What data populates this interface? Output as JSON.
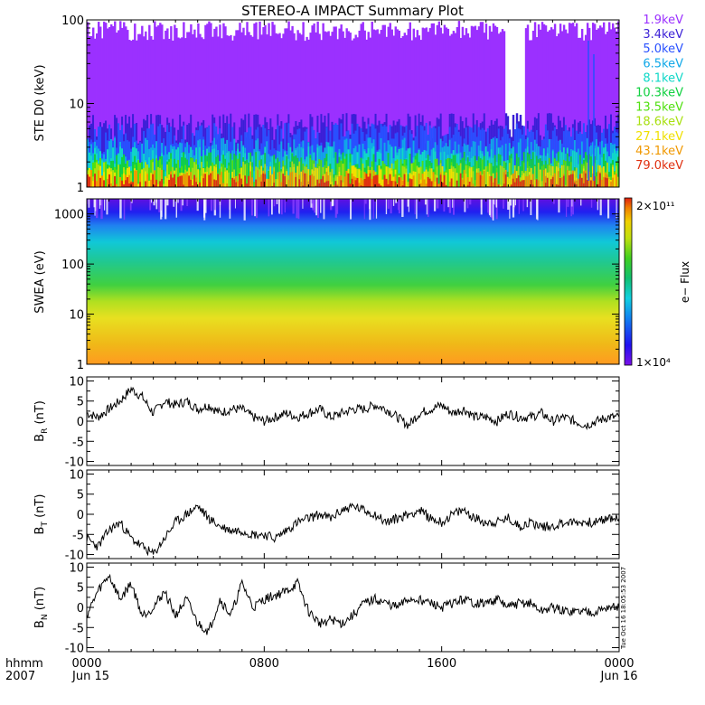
{
  "title": "STEREO-A IMPACT Summary Plot",
  "footer": {
    "time_label": "hhmm",
    "year_label": "2007",
    "x_ticks": [
      "0000",
      "0800",
      "1600",
      "0000"
    ],
    "date_labels": [
      "Jun 15",
      "Jun 16"
    ],
    "timestamp": "Tue Oct 16 18:05:53 2007"
  },
  "ste_channels": [
    {
      "label": "1.9keV",
      "color": "#9b30ff"
    },
    {
      "label": "3.4keV",
      "color": "#3a1fd6"
    },
    {
      "label": "5.0keV",
      "color": "#2850ff"
    },
    {
      "label": "6.5keV",
      "color": "#10a8e8"
    },
    {
      "label": "8.1keV",
      "color": "#10d8c8"
    },
    {
      "label": "10.3keV",
      "color": "#10d040"
    },
    {
      "label": "13.5keV",
      "color": "#50e010"
    },
    {
      "label": "18.6keV",
      "color": "#a8e010"
    },
    {
      "label": "27.1keV",
      "color": "#f0e000"
    },
    {
      "label": "43.1keV",
      "color": "#f09800"
    },
    {
      "label": "79.0keV",
      "color": "#e03010"
    }
  ],
  "colorbar": {
    "top_label": "2×10¹¹",
    "bottom_label": "1×10⁴",
    "title": "e− Flux"
  },
  "chart_data": [
    {
      "id": "ste",
      "type": "area",
      "ylabel": "STE D0 (keV)",
      "yscale": "log",
      "ylim": [
        1,
        100
      ],
      "yticks": [
        "1",
        "10",
        "100"
      ],
      "xlim": [
        0,
        24
      ],
      "x_unit": "hours",
      "note": "stacked energy-channel counts; 1.9keV saturates near top, higher channels form colored base band",
      "series_levels": {
        "1.9keV": 75,
        "3.4keV": 5.5,
        "5.0keV": 4.2,
        "6.5keV": 2.8,
        "8.1keV": 2.2,
        "10.3keV": 1.9,
        "13.5keV": 1.6,
        "18.6keV": 1.45,
        "27.1keV": 1.3,
        "43.1keV": 1.15,
        "79.0keV": 1.05
      }
    },
    {
      "id": "swea",
      "type": "heatmap",
      "ylabel": "SWEA (eV)",
      "yscale": "log",
      "ylim": [
        1,
        2000
      ],
      "yticks": [
        "1",
        "10",
        "100",
        "1000"
      ],
      "xlim": [
        0,
        24
      ],
      "zscale": "log",
      "zlim": [
        10000,
        200000000000
      ]
    },
    {
      "id": "br",
      "type": "line",
      "ylabel_main": "B",
      "ylabel_sub": "R",
      "ylabel_unit": " (nT)",
      "ylim": [
        -11,
        11
      ],
      "yticks": [
        "10",
        "5",
        "0",
        "-5",
        "-10"
      ],
      "xlim": [
        0,
        24
      ],
      "x": [
        0,
        0.5,
        1,
        1.5,
        2,
        2.5,
        3,
        3.5,
        4,
        4.5,
        5,
        5.5,
        6,
        6.5,
        7,
        7.5,
        8,
        8.5,
        9,
        9.5,
        10,
        10.5,
        11,
        11.5,
        12,
        12.5,
        13,
        13.5,
        14,
        14.5,
        15,
        15.5,
        16,
        16.5,
        17,
        17.5,
        18,
        18.5,
        19,
        19.5,
        20,
        20.5,
        21,
        21.5,
        22,
        22.5,
        23,
        23.5,
        24
      ],
      "y": [
        2,
        1,
        3,
        5,
        8,
        6,
        2,
        5,
        4,
        5,
        3,
        4,
        2,
        3,
        3,
        1,
        0,
        1,
        2,
        1,
        2,
        3,
        1,
        2,
        3,
        3,
        4,
        3,
        1,
        -1,
        2,
        3,
        4,
        2,
        3,
        1,
        1,
        0,
        2,
        1,
        1,
        2,
        0,
        1,
        0,
        -1,
        0,
        1,
        1
      ]
    },
    {
      "id": "bt",
      "type": "line",
      "ylabel_main": "B",
      "ylabel_sub": "T",
      "ylabel_unit": " (nT)",
      "ylim": [
        -11,
        11
      ],
      "yticks": [
        "10",
        "5",
        "0",
        "-5",
        "-10"
      ],
      "xlim": [
        0,
        24
      ],
      "x": [
        0,
        0.5,
        1,
        1.5,
        2,
        2.5,
        3,
        3.5,
        4,
        4.5,
        5,
        5.5,
        6,
        6.5,
        7,
        7.5,
        8,
        8.5,
        9,
        9.5,
        10,
        10.5,
        11,
        11.5,
        12,
        12.5,
        13,
        13.5,
        14,
        14.5,
        15,
        15.5,
        16,
        16.5,
        17,
        17.5,
        18,
        18.5,
        19,
        19.5,
        20,
        20.5,
        21,
        21.5,
        22,
        22.5,
        23,
        23.5,
        24
      ],
      "y": [
        -6,
        -8,
        -4,
        -2,
        -6,
        -8,
        -10,
        -6,
        -2,
        0,
        2,
        -1,
        -3,
        -4,
        -4,
        -5,
        -5,
        -6,
        -4,
        -2,
        -1,
        0,
        -1,
        1,
        2,
        1,
        0,
        -2,
        -1,
        0,
        1,
        -1,
        -2,
        0,
        1,
        -1,
        -2,
        -2,
        -1,
        -3,
        -2,
        -3,
        -3,
        -2,
        -2,
        -2,
        -2,
        -1,
        -1
      ]
    },
    {
      "id": "bn",
      "type": "line",
      "ylabel_main": "B",
      "ylabel_sub": "N",
      "ylabel_unit": " (nT)",
      "ylim": [
        -11,
        11
      ],
      "yticks": [
        "10",
        "5",
        "0",
        "-5",
        "-10"
      ],
      "xlim": [
        0,
        24
      ],
      "x": [
        0,
        0.5,
        1,
        1.5,
        2,
        2.5,
        3,
        3.5,
        4,
        4.5,
        5,
        5.5,
        6,
        6.5,
        7,
        7.5,
        8,
        8.5,
        9,
        9.5,
        10,
        10.5,
        11,
        11.5,
        12,
        12.5,
        13,
        13.5,
        14,
        14.5,
        15,
        15.5,
        16,
        16.5,
        17,
        17.5,
        18,
        18.5,
        19,
        19.5,
        20,
        20.5,
        21,
        21.5,
        22,
        22.5,
        23,
        23.5,
        24
      ],
      "y": [
        -2,
        4,
        8,
        2,
        6,
        -2,
        0,
        4,
        -2,
        2,
        -4,
        -6,
        2,
        -2,
        6,
        0,
        2,
        3,
        4,
        6,
        -1,
        -4,
        -3,
        -4,
        -2,
        1,
        2,
        1,
        0,
        2,
        2,
        1,
        0,
        1,
        2,
        1,
        1,
        2,
        0,
        1,
        1,
        -1,
        0,
        -1,
        -1,
        -1,
        -1,
        0,
        0
      ]
    }
  ]
}
